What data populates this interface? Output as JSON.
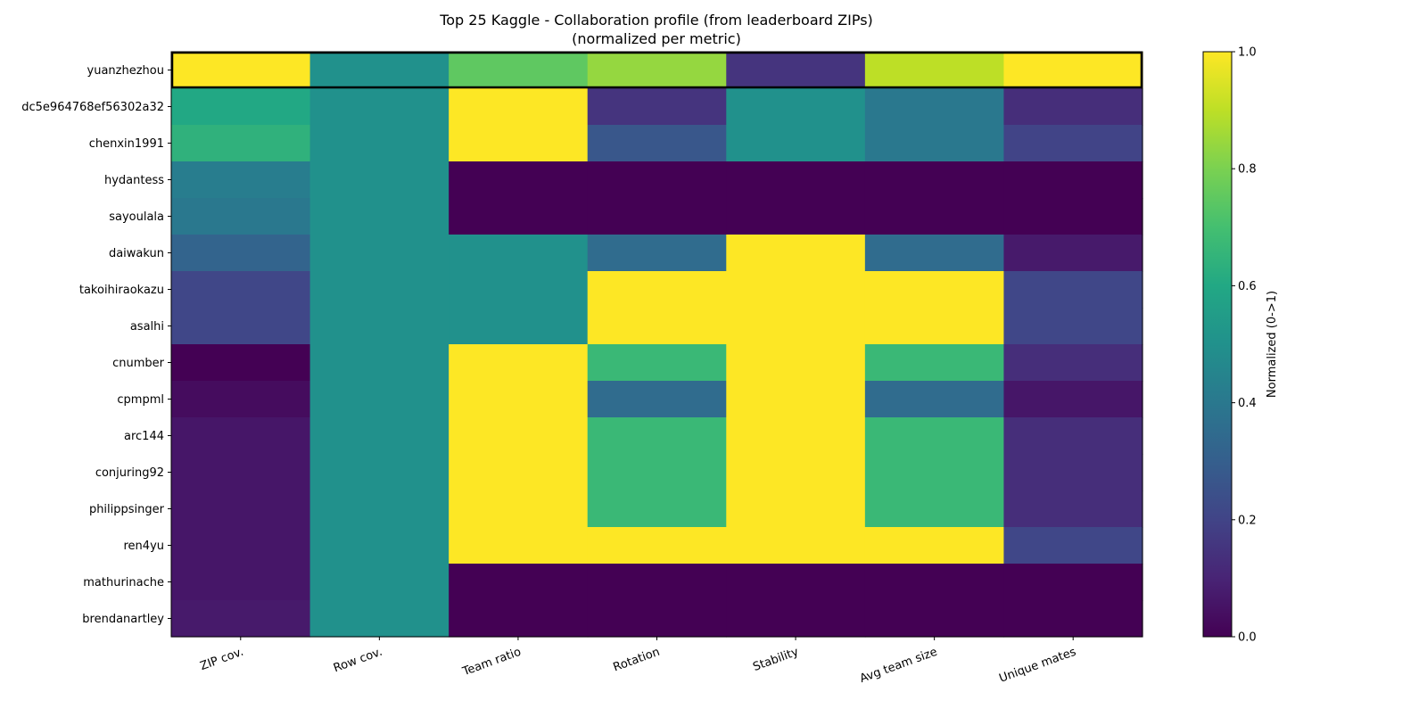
{
  "chart_data": {
    "type": "heatmap",
    "title": "Top 25 Kaggle - Collaboration profile (from leaderboard ZIPs)",
    "subtitle": "(normalized per metric)",
    "xlabel": "",
    "ylabel": "",
    "colormap": "viridis",
    "highlighted_row": "yuanzhezhou",
    "columns": [
      "ZIP cov.",
      "Row cov.",
      "Team ratio",
      "Rotation",
      "Stability",
      "Avg team size",
      "Unique mates"
    ],
    "rows": [
      "yuanzhezhou",
      "dc5e964768ef56302a32",
      "chenxin1991",
      "hydantess",
      "sayoulala",
      "daiwakun",
      "takoihiraokazu",
      "asalhi",
      "cnumber",
      "cpmpml",
      "arc144",
      "conjuring92",
      "philippsinger",
      "ren4yu",
      "mathurinache",
      "brendanartley"
    ],
    "values": [
      [
        1.0,
        0.5,
        0.75,
        0.84,
        0.15,
        0.9,
        1.0
      ],
      [
        0.6,
        0.5,
        1.0,
        0.15,
        0.5,
        0.4,
        0.13
      ],
      [
        0.64,
        0.5,
        1.0,
        0.27,
        0.5,
        0.4,
        0.2
      ],
      [
        0.42,
        0.5,
        0.0,
        0.0,
        0.0,
        0.0,
        0.0
      ],
      [
        0.4,
        0.5,
        0.0,
        0.0,
        0.0,
        0.0,
        0.0
      ],
      [
        0.32,
        0.5,
        0.5,
        0.35,
        1.0,
        0.35,
        0.07
      ],
      [
        0.21,
        0.5,
        0.5,
        1.0,
        1.0,
        1.0,
        0.21
      ],
      [
        0.21,
        0.5,
        0.5,
        1.0,
        1.0,
        1.0,
        0.21
      ],
      [
        0.0,
        0.5,
        1.0,
        0.67,
        1.0,
        0.67,
        0.13
      ],
      [
        0.03,
        0.5,
        1.0,
        0.35,
        1.0,
        0.35,
        0.06
      ],
      [
        0.06,
        0.5,
        1.0,
        0.67,
        1.0,
        0.67,
        0.13
      ],
      [
        0.06,
        0.5,
        1.0,
        0.67,
        1.0,
        0.67,
        0.13
      ],
      [
        0.06,
        0.5,
        1.0,
        0.67,
        1.0,
        0.67,
        0.13
      ],
      [
        0.06,
        0.5,
        1.0,
        1.0,
        1.0,
        1.0,
        0.21
      ],
      [
        0.06,
        0.5,
        0.0,
        0.0,
        0.0,
        0.0,
        0.0
      ],
      [
        0.07,
        0.5,
        0.0,
        0.0,
        0.0,
        0.0,
        0.0
      ]
    ],
    "colorbar": {
      "label": "Normalized (0->1)",
      "range": [
        0,
        1
      ],
      "ticks": [
        "0.0",
        "0.2",
        "0.4",
        "0.6",
        "0.8",
        "1.0"
      ]
    }
  }
}
